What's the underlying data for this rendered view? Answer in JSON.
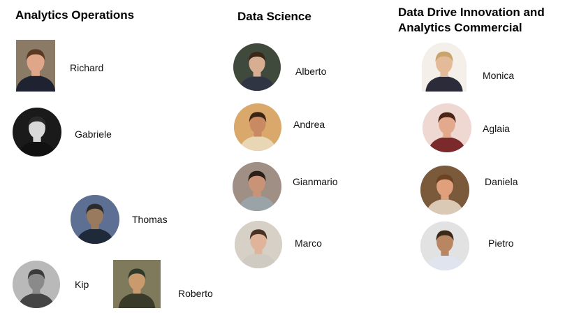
{
  "groups": [
    {
      "title": "Analytics Operations",
      "members": [
        {
          "name": "Richard",
          "photo": "portrait-photo",
          "bg": "#8a7a66",
          "skin": "#e0a68a",
          "hair": "#5a3a22",
          "shirt": "#1f2230"
        },
        {
          "name": "Gabriele",
          "photo": "portrait-photo",
          "bg": "#1a1a1a",
          "skin": "#d9d9d9",
          "hair": "#2a2a2a",
          "shirt": "#111111"
        },
        {
          "name": "Thomas",
          "photo": "portrait-photo",
          "bg": "#5d6f92",
          "skin": "#9a7a5e",
          "hair": "#2b2b2b",
          "shirt": "#1e2a3a"
        },
        {
          "name": "Kip",
          "photo": "portrait-photo",
          "bg": "#b9b9b9",
          "skin": "#8a8a8a",
          "hair": "#3a3a3a",
          "shirt": "#444444"
        },
        {
          "name": "Roberto",
          "photo": "portrait-photo",
          "bg": "#7f7a5c",
          "skin": "#c99a6e",
          "hair": "#2e3b2a",
          "shirt": "#3a3a2a"
        }
      ]
    },
    {
      "title": "Data Science",
      "members": [
        {
          "name": "Alberto",
          "photo": "portrait-photo",
          "bg": "#3f4a3c",
          "skin": "#d8ae92",
          "hair": "#3a2718",
          "shirt": "#2f3542"
        },
        {
          "name": "Andrea",
          "photo": "portrait-photo",
          "bg": "#d9a86a",
          "skin": "#c98a63",
          "hair": "#3b2414",
          "shirt": "#e8d6b5"
        },
        {
          "name": "Gianmario",
          "photo": "portrait-photo",
          "bg": "#9f8f84",
          "skin": "#c99378",
          "hair": "#2a2018",
          "shirt": "#9aa3a8"
        },
        {
          "name": "Marco",
          "photo": "portrait-photo",
          "bg": "#d6d0c6",
          "skin": "#e0b49a",
          "hair": "#4a3322",
          "shirt": "#cfcac2"
        }
      ]
    },
    {
      "title": "Data Drive Innovation and Analytics Commercial",
      "members": [
        {
          "name": "Monica",
          "photo": "portrait-photo",
          "bg": "#f4efe8",
          "skin": "#e4bb98",
          "hair": "#c9a46b",
          "shirt": "#2b2b3a"
        },
        {
          "name": "Aglaia",
          "photo": "portrait-photo",
          "bg": "#f0d8d2",
          "skin": "#e3a98c",
          "hair": "#4a2414",
          "shirt": "#7a2a2a"
        },
        {
          "name": "Daniela",
          "photo": "portrait-photo",
          "bg": "#7a5a3a",
          "skin": "#e0a07c",
          "hair": "#6b4322",
          "shirt": "#d9c9b5"
        },
        {
          "name": "Pietro",
          "photo": "portrait-photo",
          "bg": "#e2e2e2",
          "skin": "#b98662",
          "hair": "#3a2818",
          "shirt": "#dfe4ee"
        }
      ]
    }
  ]
}
